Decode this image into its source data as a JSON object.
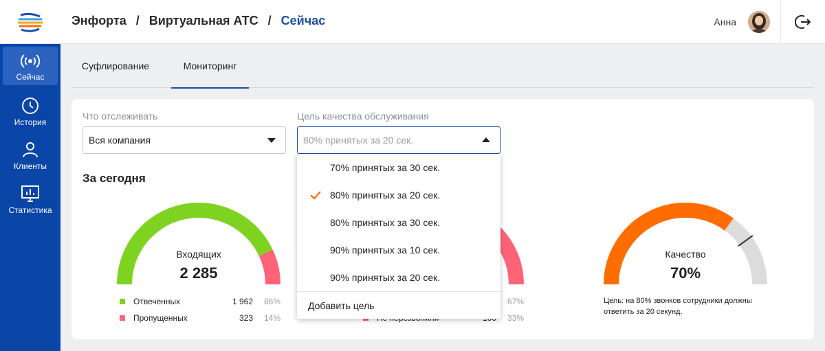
{
  "brand": {
    "logo_icon": "enforta-logo-icon"
  },
  "sidebar": {
    "items": [
      {
        "label": "Сейчас",
        "icon": "broadcast-icon",
        "active": true
      },
      {
        "label": "История",
        "icon": "clock-icon",
        "active": false
      },
      {
        "label": "Клиенты",
        "icon": "person-icon",
        "active": false
      },
      {
        "label": "Статистика",
        "icon": "monitor-chart-icon",
        "active": false
      }
    ]
  },
  "header": {
    "breadcrumbs": [
      "Энфорта",
      "Виртуальная АТС",
      "Сейчас"
    ],
    "separator": "/",
    "user_name": "Анна",
    "logout_icon": "logout-icon"
  },
  "tabs": [
    {
      "label": "Суфлирование",
      "active": false
    },
    {
      "label": "Мониторинг",
      "active": true
    }
  ],
  "filters": {
    "track": {
      "label": "Что отслеживать",
      "value": "Вся компания"
    },
    "goal": {
      "label": "Цель качества обслуживания",
      "placeholder": "80% принятых за 20 сек."
    }
  },
  "section_title": "За сегодня",
  "gauges": {
    "incoming": {
      "label": "Входящих",
      "value": "2 285",
      "share_answered": 0.86,
      "legend": [
        {
          "label": "Отвеченных",
          "count": "1 962",
          "pct": "86%",
          "color": "#7ed321"
        },
        {
          "label": "Пропущенных",
          "count": "323",
          "pct": "14%",
          "color": "#ff6377"
        }
      ]
    },
    "outgoing": {
      "share_red": 0.33,
      "legend": [
        {
          "label": "",
          "count": "",
          "pct": "67%",
          "color": "#7ed321"
        },
        {
          "label": "Не перезвонили",
          "count": "100",
          "pct": "33%",
          "color": "#ff6377"
        }
      ]
    },
    "quality": {
      "label": "Качество",
      "value": "70%",
      "share": 0.7,
      "target": 0.8,
      "note": "Цель: на 80% звонков сотрудники должны ответить за 20 секунд.",
      "color": "#ff6d00",
      "rest_color": "#dcdcdc"
    }
  },
  "dropdown": {
    "options": [
      {
        "label": "70% принятых за 30 сек.",
        "selected": false
      },
      {
        "label": "80% принятых за 20 сек.",
        "selected": true
      },
      {
        "label": "80% принятых за 30 сек.",
        "selected": false
      },
      {
        "label": "90% принятых за 10 сек.",
        "selected": false
      },
      {
        "label": "90% принятых за 20 сек.",
        "selected": false
      }
    ],
    "add_label": "Добавить цель",
    "check_color": "#ff6d00"
  }
}
